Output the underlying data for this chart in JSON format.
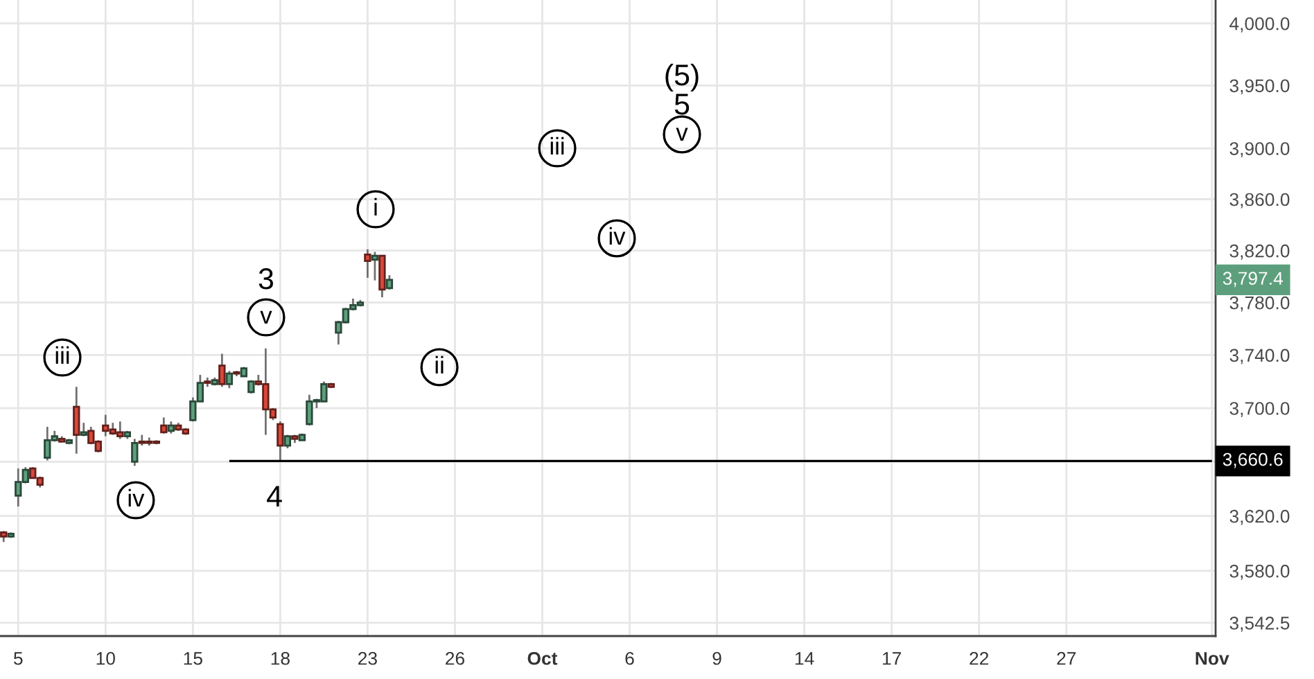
{
  "chart_data": {
    "type": "candlestick",
    "categories": [
      null,
      null,
      "5",
      null,
      null,
      null,
      null,
      null,
      null,
      null,
      null,
      null,
      null,
      null,
      "10",
      null,
      null,
      null,
      null,
      null,
      null,
      null,
      null,
      null,
      null,
      null,
      "15",
      null,
      null,
      null,
      null,
      null,
      null,
      null,
      null,
      null,
      null,
      null,
      "18",
      null,
      null,
      null,
      null,
      null,
      null,
      null,
      null,
      null,
      null,
      null,
      "23",
      null,
      null,
      null,
      null,
      null,
      null,
      null,
      null,
      null,
      null,
      null,
      "26",
      null,
      null,
      null,
      null,
      null,
      null,
      null,
      null,
      null,
      null,
      null,
      "Oct",
      null,
      null,
      null,
      null,
      null,
      null,
      null,
      null,
      null,
      null,
      null,
      "6",
      null,
      null,
      null,
      null,
      null,
      null,
      null,
      null,
      null,
      null,
      null,
      "9",
      null,
      null,
      null,
      null,
      null,
      null,
      null,
      null,
      null,
      null,
      null,
      "14",
      null,
      null,
      null,
      null,
      null,
      null,
      null,
      null,
      null,
      null,
      null,
      "17",
      null,
      null,
      null,
      null,
      null,
      null,
      null,
      null,
      null,
      null,
      null,
      "22",
      null,
      null,
      null,
      null,
      null,
      null,
      null,
      null,
      null,
      null,
      null,
      "27",
      null,
      null,
      null,
      null,
      null,
      null,
      null,
      null,
      null,
      null,
      null,
      null,
      null,
      null,
      null,
      null,
      null,
      null,
      null,
      "Nov"
    ],
    "series": [
      {
        "ohlc": [
          [
            3608,
            3609,
            3601,
            3605
          ],
          [
            3605,
            3608,
            3604,
            3607
          ],
          [
            3635,
            3655,
            3627,
            3645
          ],
          [
            3645,
            3656,
            3644,
            3654
          ],
          [
            3655,
            3656,
            3648,
            3648
          ],
          [
            3648,
            3649,
            3641,
            3643
          ],
          [
            3663,
            3686,
            3661,
            3676
          ],
          [
            3676,
            3683,
            3675,
            3679
          ],
          [
            3677,
            3679,
            3675,
            3675
          ],
          [
            3674,
            3677,
            3673,
            3676
          ],
          [
            3701,
            3716,
            3666,
            3680
          ],
          [
            3680,
            3689,
            3679,
            3682
          ],
          [
            3683,
            3686,
            3673,
            3674
          ],
          [
            3675,
            3676,
            3667,
            3668
          ],
          [
            3687,
            3695,
            3679,
            3683
          ],
          [
            3684,
            3689,
            3680,
            3681
          ],
          [
            3682,
            3690,
            3677,
            3679
          ],
          [
            3679,
            3683,
            3677,
            3682
          ],
          [
            3660,
            3677,
            3657,
            3674
          ],
          [
            3675,
            3680,
            3672,
            3674
          ],
          [
            3675,
            3678,
            3672,
            3674
          ],
          [
            3675,
            3676,
            3673,
            3674
          ],
          [
            3687,
            3693,
            3681,
            3682
          ],
          [
            3683,
            3690,
            3681,
            3687
          ],
          [
            3687,
            3689,
            3683,
            3684
          ],
          [
            3684,
            3685,
            3680,
            3681
          ],
          [
            3691,
            3708,
            3690,
            3705
          ],
          [
            3705,
            3725,
            3705,
            3719
          ],
          [
            3720,
            3723,
            3716,
            3719
          ],
          [
            3718,
            3723,
            3717,
            3721
          ],
          [
            3732,
            3741,
            3716,
            3718
          ],
          [
            3718,
            3728,
            3715,
            3726
          ],
          [
            3727,
            3728,
            3724,
            3726
          ],
          [
            3724,
            3731,
            3724,
            3730
          ],
          [
            3712,
            3721,
            3711,
            3720
          ],
          [
            3720,
            3725,
            3717,
            3718
          ],
          [
            3718,
            3745,
            3680,
            3699
          ],
          [
            3699,
            3700,
            3691,
            3693
          ],
          [
            3688,
            3690,
            3661,
            3672
          ],
          [
            3672,
            3680,
            3670,
            3679
          ],
          [
            3679,
            3680,
            3674,
            3677
          ],
          [
            3676,
            3681,
            3676,
            3680
          ],
          [
            3688,
            3710,
            3687,
            3705
          ],
          [
            3705,
            3707,
            3700,
            3706
          ],
          [
            3705,
            3720,
            3705,
            3718
          ],
          [
            3718,
            3719,
            3715,
            3716
          ],
          [
            3757,
            3766,
            3748,
            3765
          ],
          [
            3765,
            3776,
            3764,
            3775
          ],
          [
            3775,
            3783,
            3774,
            3778
          ],
          [
            3778,
            3782,
            3777,
            3780
          ],
          [
            3817,
            3821,
            3799,
            3812
          ],
          [
            3813,
            3819,
            3797,
            3816
          ],
          [
            3816,
            3816,
            3784,
            3790
          ],
          [
            3791,
            3801,
            3790,
            3797.4
          ],
          null,
          null,
          null,
          null,
          null,
          null,
          null,
          null,
          null,
          null,
          null,
          null,
          null,
          null,
          null,
          null,
          null,
          null,
          null,
          null,
          null,
          null,
          null,
          null,
          null,
          null,
          null,
          null,
          null,
          null,
          null,
          null,
          null,
          null,
          null,
          null,
          null,
          null,
          null,
          null,
          null,
          null,
          null,
          null,
          null,
          null,
          null,
          null,
          null,
          null,
          null,
          null,
          null,
          null,
          null,
          null,
          null,
          null,
          null,
          null,
          null,
          null,
          null,
          null,
          null,
          null,
          null,
          null,
          null,
          null,
          null,
          null,
          null,
          null,
          null,
          null,
          null,
          null,
          null,
          null,
          null,
          null,
          null,
          null,
          null,
          null,
          null,
          null,
          null,
          null,
          null,
          null,
          null,
          null,
          null,
          null,
          null,
          null,
          null,
          null,
          null,
          null,
          null,
          null,
          null,
          null,
          null,
          null,
          null,
          null,
          null,
          null,
          null
        ],
        "colors": [
          "#d9483b",
          "#5d9f7d",
          "#5d9f7d",
          "#5d9f7d",
          "#d9483b",
          "#d9483b",
          "#5d9f7d",
          "#5d9f7d",
          "#d9483b",
          "#5d9f7d",
          "#d9483b",
          "#5d9f7d",
          "#d9483b",
          "#d9483b",
          "#d9483b",
          "#d9483b",
          "#d9483b",
          "#5d9f7d",
          "#5d9f7d",
          "#d9483b",
          "#d9483b",
          "#d9483b",
          "#d9483b",
          "#5d9f7d",
          "#d9483b",
          "#d9483b",
          "#5d9f7d",
          "#5d9f7d",
          "#d9483b",
          "#5d9f7d",
          "#d9483b",
          "#5d9f7d",
          "#d9483b",
          "#5d9f7d",
          "#5d9f7d",
          "#d9483b",
          "#d9483b",
          "#d9483b",
          "#d9483b",
          "#5d9f7d",
          "#d9483b",
          "#5d9f7d",
          "#5d9f7d",
          "#5d9f7d",
          "#5d9f7d",
          "#d9483b",
          "#5d9f7d",
          "#5d9f7d",
          "#5d9f7d",
          "#5d9f7d",
          "#d9483b",
          "#5d9f7d",
          "#d9483b",
          "#5d9f7d",
          null,
          null,
          null,
          null,
          null,
          null,
          null,
          null,
          null,
          null,
          null,
          null,
          null,
          null,
          null,
          null,
          null,
          null,
          null,
          null,
          null,
          null,
          null,
          null,
          null,
          null,
          null,
          null,
          null,
          null,
          null,
          null,
          null,
          null,
          null,
          null,
          null,
          null,
          null,
          null,
          null,
          null,
          null,
          null,
          null,
          null,
          null,
          null,
          null,
          null,
          null,
          null,
          null,
          null,
          null,
          null,
          null,
          null,
          null,
          null,
          null,
          null,
          null,
          null,
          null,
          null,
          null,
          null,
          null,
          null,
          null,
          null,
          null,
          null,
          null,
          null,
          null,
          null,
          null,
          null,
          null,
          null,
          null,
          null,
          null,
          null,
          null,
          null,
          null,
          null,
          null,
          null,
          null,
          null,
          null,
          null,
          null,
          null,
          null,
          null,
          null,
          null,
          null,
          null,
          null,
          null,
          null,
          null,
          null,
          null,
          null,
          null,
          null
        ],
        "value_labels": [
          null,
          null,
          null,
          null,
          null,
          null,
          null,
          null,
          null,
          null,
          null,
          null,
          null,
          null,
          null,
          null,
          null,
          null,
          null,
          null,
          null,
          null,
          null,
          null,
          null,
          null,
          null,
          null,
          null,
          null,
          null,
          null,
          null,
          null,
          null,
          null,
          null,
          null,
          null,
          null,
          null,
          null,
          null,
          null,
          null,
          null,
          null,
          null,
          null,
          null,
          null,
          null,
          null,
          "3,797.4",
          null,
          null,
          null,
          null,
          null,
          null,
          null,
          null,
          null,
          null,
          null,
          null,
          null,
          null,
          null,
          null,
          null,
          null,
          null,
          null,
          null,
          null,
          null,
          null,
          null,
          null,
          null,
          null,
          null,
          null,
          null,
          null,
          null,
          null,
          null,
          null,
          null,
          null,
          null,
          null,
          null,
          null,
          null,
          null,
          null,
          null,
          null,
          null,
          null,
          null,
          null,
          null,
          null,
          null,
          null,
          null,
          null,
          null,
          null,
          null,
          null,
          null,
          null,
          null,
          null,
          null,
          null,
          null,
          null,
          null,
          null,
          null,
          null,
          null,
          null,
          null,
          null,
          null,
          null,
          null,
          null,
          null,
          null,
          null,
          null,
          null,
          null,
          null,
          null,
          null,
          null,
          null,
          null,
          null,
          null,
          null,
          null,
          null,
          null,
          null,
          null,
          null,
          null,
          null,
          null,
          null,
          null,
          null,
          null,
          null,
          null,
          null,
          null
        ]
      },
      {
        "type": "line",
        "color": "#000000",
        "values": [
          null,
          null,
          null,
          null,
          null,
          null,
          null,
          null,
          null,
          null,
          null,
          null,
          null,
          null,
          null,
          null,
          null,
          null,
          null,
          null,
          null,
          null,
          null,
          null,
          null,
          null,
          null,
          null,
          null,
          null,
          null,
          3660.6,
          3660.6,
          3660.6,
          3660.6,
          3660.6,
          3660.6,
          3660.6,
          3660.6,
          3660.6,
          3660.6,
          3660.6,
          3660.6,
          3660.6,
          3660.6,
          3660.6,
          3660.6,
          3660.6,
          3660.6,
          3660.6,
          3660.6,
          3660.6,
          3660.6,
          3660.6,
          3660.6,
          3660.6,
          3660.6,
          3660.6,
          3660.6,
          3660.6,
          3660.6,
          3660.6,
          3660.6,
          3660.6,
          3660.6,
          3660.6,
          3660.6,
          3660.6,
          3660.6,
          3660.6,
          3660.6,
          3660.6,
          3660.6,
          3660.6,
          3660.6,
          3660.6,
          3660.6,
          3660.6,
          3660.6,
          3660.6,
          3660.6,
          3660.6,
          3660.6,
          3660.6,
          3660.6,
          3660.6,
          3660.6,
          3660.6,
          3660.6,
          3660.6,
          3660.6,
          3660.6,
          3660.6,
          3660.6,
          3660.6,
          3660.6,
          3660.6,
          3660.6,
          3660.6,
          3660.6,
          3660.6,
          3660.6,
          3660.6,
          3660.6,
          3660.6,
          3660.6,
          3660.6,
          3660.6,
          3660.6,
          3660.6,
          3660.6,
          3660.6,
          3660.6,
          3660.6,
          3660.6,
          3660.6,
          3660.6,
          3660.6,
          3660.6,
          3660.6,
          3660.6,
          3660.6,
          3660.6,
          3660.6,
          3660.6,
          3660.6,
          3660.6,
          3660.6,
          3660.6,
          3660.6,
          3660.6,
          3660.6,
          3660.6,
          3660.6,
          3660.6,
          3660.6,
          3660.6,
          3660.6,
          3660.6,
          3660.6,
          3660.6,
          3660.6,
          3660.6,
          3660.6,
          3660.6,
          3660.6,
          3660.6,
          3660.6,
          3660.6,
          3660.6,
          3660.6,
          3660.6,
          3660.6,
          3660.6,
          3660.6,
          3660.6,
          3660.6,
          3660.6,
          3660.6,
          3660.6,
          3660.6,
          3660.6,
          3660.6,
          3660.6,
          3660.6,
          3660.6,
          3660.6
        ],
        "value_labels": [
          null,
          null,
          null,
          null,
          null,
          null,
          null,
          null,
          null,
          null,
          null,
          null,
          null,
          null,
          null,
          null,
          null,
          null,
          null,
          null,
          null,
          null,
          null,
          null,
          null,
          null,
          null,
          null,
          null,
          null,
          null,
          null,
          null,
          null,
          null,
          null,
          null,
          null,
          null,
          null,
          null,
          null,
          null,
          null,
          null,
          null,
          null,
          null,
          null,
          null,
          null,
          null,
          null,
          null,
          null,
          null,
          null,
          null,
          null,
          null,
          null,
          null,
          null,
          null,
          null,
          null,
          null,
          null,
          null,
          null,
          null,
          null,
          null,
          null,
          null,
          null,
          null,
          null,
          null,
          null,
          null,
          null,
          null,
          null,
          null,
          null,
          null,
          null,
          null,
          null,
          null,
          null,
          null,
          null,
          null,
          null,
          null,
          null,
          null,
          null,
          null,
          null,
          null,
          null,
          null,
          null,
          null,
          null,
          null,
          null,
          null,
          null,
          null,
          null,
          null,
          null,
          null,
          null,
          null,
          null,
          null,
          null,
          null,
          null,
          null,
          null,
          null,
          null,
          null,
          null,
          null,
          null,
          null,
          null,
          null,
          null,
          null,
          null,
          null,
          null,
          null,
          null,
          null,
          null,
          null,
          null,
          null,
          null,
          null,
          null,
          null,
          null,
          null,
          null,
          null,
          null,
          null,
          null,
          null,
          null,
          null,
          null,
          null,
          null,
          null,
          null,
          "3,660.6"
        ]
      }
    ],
    "ylim": [
      3533,
      4019
    ],
    "yticks": [
      {
        "value": 3542.5,
        "label": "3,542.5"
      },
      {
        "value": 3580,
        "label": "3,580.0"
      },
      {
        "value": 3620,
        "label": "3,620.0"
      },
      {
        "value": 3660,
        "label": null
      },
      {
        "value": 3700,
        "label": "3,700.0"
      },
      {
        "value": 3740,
        "label": "3,740.0"
      },
      {
        "value": 3780,
        "label": "3,780.0"
      },
      {
        "value": 3820,
        "label": "3,820.0"
      },
      {
        "value": 3860,
        "label": "3,860.0"
      },
      {
        "value": 3900,
        "label": "3,900.0"
      },
      {
        "value": 3950,
        "label": "3,950.0"
      },
      {
        "value": 4000,
        "label": "4,000.0"
      }
    ],
    "log": true,
    "grid": true,
    "annotations": [
      "iii",
      "iv",
      "3",
      "v",
      "4",
      "i",
      "ii",
      "iii",
      "iv",
      "(5)",
      "5",
      "v"
    ]
  }
}
